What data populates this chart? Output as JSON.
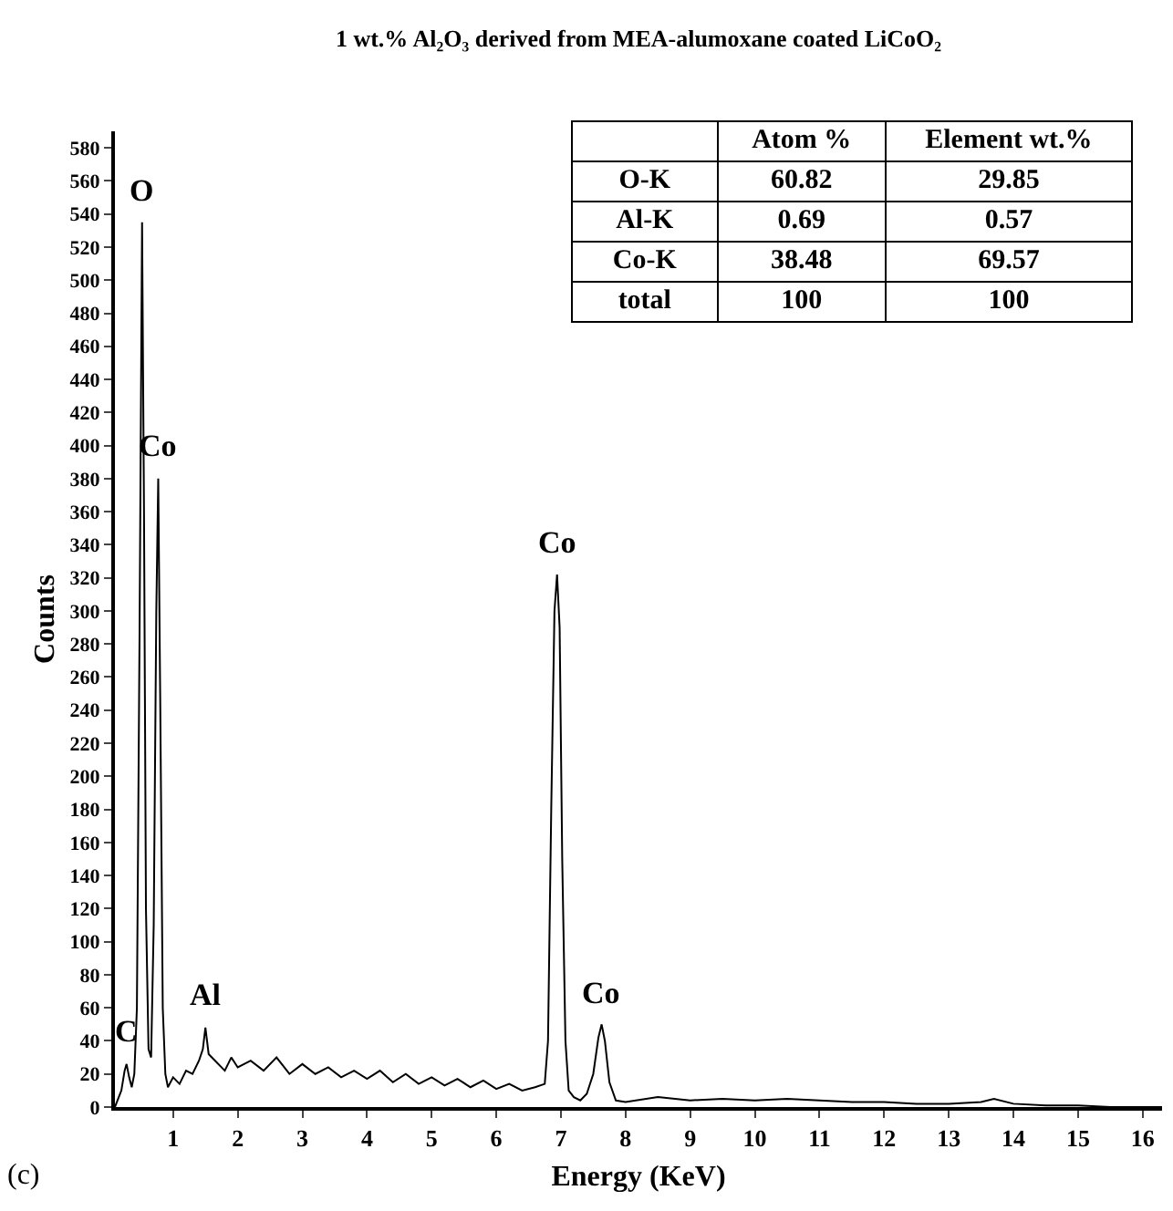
{
  "chart_data": {
    "type": "line",
    "title": "1 wt.% Al₂O₃ derived from MEA-alumoxane coated LiCoO₂",
    "xlabel": "Energy (KeV)",
    "ylabel": "Counts",
    "xlim": [
      0.1,
      16.3
    ],
    "ylim": [
      0,
      590
    ],
    "xticks": [
      1,
      2,
      3,
      4,
      5,
      6,
      7,
      8,
      9,
      10,
      11,
      12,
      13,
      14,
      15,
      16
    ],
    "yticks": [
      0,
      20,
      40,
      60,
      80,
      100,
      120,
      140,
      160,
      180,
      200,
      220,
      240,
      260,
      280,
      300,
      320,
      340,
      360,
      380,
      400,
      420,
      440,
      460,
      480,
      500,
      520,
      540,
      560,
      580
    ],
    "grid": false,
    "marker": "none",
    "line_style": "solid",
    "x": [
      0.1,
      0.15,
      0.2,
      0.25,
      0.28,
      0.32,
      0.36,
      0.4,
      0.44,
      0.48,
      0.52,
      0.55,
      0.58,
      0.62,
      0.66,
      0.7,
      0.74,
      0.77,
      0.8,
      0.84,
      0.88,
      0.92,
      1.0,
      1.1,
      1.2,
      1.3,
      1.4,
      1.46,
      1.5,
      1.55,
      1.65,
      1.8,
      1.9,
      2.0,
      2.2,
      2.4,
      2.6,
      2.8,
      3.0,
      3.2,
      3.4,
      3.6,
      3.8,
      4.0,
      4.2,
      4.4,
      4.6,
      4.8,
      5.0,
      5.2,
      5.4,
      5.6,
      5.8,
      6.0,
      6.2,
      6.4,
      6.6,
      6.75,
      6.8,
      6.85,
      6.9,
      6.94,
      6.98,
      7.02,
      7.07,
      7.12,
      7.2,
      7.3,
      7.4,
      7.5,
      7.58,
      7.63,
      7.68,
      7.75,
      7.85,
      8.0,
      8.5,
      9.0,
      9.5,
      10,
      10.5,
      11,
      11.5,
      12,
      12.5,
      13,
      13.5,
      13.7,
      14,
      14.5,
      15,
      15.5,
      16,
      16.3
    ],
    "series": [
      {
        "color": "#000000",
        "values": [
          0,
          5,
          10,
          22,
          26,
          18,
          12,
          20,
          60,
          280,
          535,
          360,
          120,
          35,
          30,
          110,
          300,
          380,
          250,
          60,
          20,
          12,
          18,
          14,
          22,
          20,
          28,
          35,
          48,
          32,
          28,
          22,
          30,
          24,
          28,
          22,
          30,
          20,
          26,
          20,
          24,
          18,
          22,
          17,
          22,
          15,
          20,
          14,
          18,
          13,
          17,
          12,
          16,
          11,
          14,
          10,
          12,
          14,
          40,
          180,
          300,
          322,
          290,
          150,
          40,
          10,
          6,
          4,
          8,
          20,
          42,
          50,
          40,
          15,
          4,
          3,
          6,
          4,
          5,
          4,
          5,
          4,
          3,
          3,
          2,
          2,
          3,
          5,
          2,
          1,
          1,
          0,
          0,
          0
        ]
      }
    ],
    "annotations": [
      {
        "text": "C",
        "x": 0.28,
        "y": 26
      },
      {
        "text": "O",
        "x": 0.52,
        "y": 535
      },
      {
        "text": "Co",
        "x": 0.77,
        "y": 380
      },
      {
        "text": "Al",
        "x": 1.5,
        "y": 48
      },
      {
        "text": "Co",
        "x": 6.94,
        "y": 322
      },
      {
        "text": "Co",
        "x": 7.63,
        "y": 50
      },
      "(c)",
      "Atom %",
      "Element wt.%",
      "O-K",
      "60.82",
      "29.85",
      "Al-K",
      "0.69",
      "0.57",
      "Co-K",
      "38.48",
      "69.57",
      "total",
      "100",
      "100"
    ]
  }
}
